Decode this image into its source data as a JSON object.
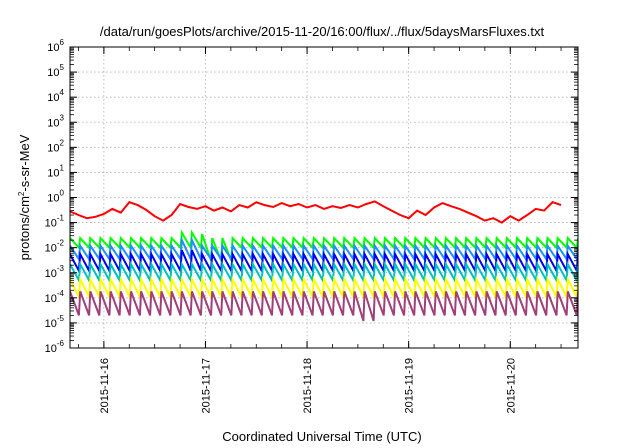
{
  "chart_data": {
    "type": "line",
    "title": "/data/run/goesPlots/archive/2015-11-20/16:00/flux/../flux/5daysMarsFluxes.txt",
    "xlabel": "Coordinated Universal Time (UTC)",
    "ylabel": {
      "base": "protons/cm",
      "sup": "2",
      "rest": "-s-sr-MeV"
    },
    "y_scale": "log",
    "y_range_exp": [
      -6,
      6
    ],
    "y_ticks": [
      {
        "base": "10",
        "exp": "-6"
      },
      {
        "base": "10",
        "exp": "-5"
      },
      {
        "base": "10",
        "exp": "-4"
      },
      {
        "base": "10",
        "exp": "-3"
      },
      {
        "base": "10",
        "exp": "-2"
      },
      {
        "base": "10",
        "exp": "-1"
      },
      {
        "base": "10",
        "exp": "0"
      },
      {
        "base": "10",
        "exp": "1"
      },
      {
        "base": "10",
        "exp": "2"
      },
      {
        "base": "10",
        "exp": "3"
      },
      {
        "base": "10",
        "exp": "4"
      },
      {
        "base": "10",
        "exp": "5"
      },
      {
        "base": "10",
        "exp": "6"
      }
    ],
    "x_range": [
      "2015-11-15T16:00",
      "2015-11-20T16:00"
    ],
    "x_ticks": [
      "2015-11-16",
      "2015-11-17",
      "2015-11-18",
      "2015-11-19",
      "2015-11-20"
    ],
    "grid": true,
    "legend": "none",
    "series": [
      {
        "color": "#ff0000",
        "points": [
          [
            "2015-11-15T16:00",
            0.28
          ],
          [
            "2015-11-15T18:00",
            0.2
          ],
          [
            "2015-11-15T20:00",
            0.15
          ],
          [
            "2015-11-15T22:00",
            0.17
          ],
          [
            "2015-11-16T00:00",
            0.22
          ],
          [
            "2015-11-16T02:00",
            0.35
          ],
          [
            "2015-11-16T04:00",
            0.25
          ],
          [
            "2015-11-16T06:00",
            0.65
          ],
          [
            "2015-11-16T08:00",
            0.5
          ],
          [
            "2015-11-16T10:00",
            0.32
          ],
          [
            "2015-11-16T12:00",
            0.18
          ],
          [
            "2015-11-16T14:00",
            0.12
          ],
          [
            "2015-11-16T16:00",
            0.2
          ],
          [
            "2015-11-16T18:00",
            0.55
          ],
          [
            "2015-11-16T20:00",
            0.42
          ],
          [
            "2015-11-16T22:00",
            0.35
          ],
          [
            "2015-11-17T00:00",
            0.45
          ],
          [
            "2015-11-17T02:00",
            0.3
          ],
          [
            "2015-11-17T04:00",
            0.4
          ],
          [
            "2015-11-17T06:00",
            0.28
          ],
          [
            "2015-11-17T08:00",
            0.5
          ],
          [
            "2015-11-17T10:00",
            0.4
          ],
          [
            "2015-11-17T12:00",
            0.65
          ],
          [
            "2015-11-17T14:00",
            0.5
          ],
          [
            "2015-11-17T16:00",
            0.42
          ],
          [
            "2015-11-17T18:00",
            0.6
          ],
          [
            "2015-11-17T20:00",
            0.45
          ],
          [
            "2015-11-17T22:00",
            0.55
          ],
          [
            "2015-11-18T00:00",
            0.4
          ],
          [
            "2015-11-18T02:00",
            0.5
          ],
          [
            "2015-11-18T04:00",
            0.35
          ],
          [
            "2015-11-18T06:00",
            0.45
          ],
          [
            "2015-11-18T08:00",
            0.38
          ],
          [
            "2015-11-18T10:00",
            0.5
          ],
          [
            "2015-11-18T12:00",
            0.4
          ],
          [
            "2015-11-18T14:00",
            0.55
          ],
          [
            "2015-11-18T16:00",
            0.7
          ],
          [
            "2015-11-18T18:00",
            0.45
          ],
          [
            "2015-11-18T20:00",
            0.3
          ],
          [
            "2015-11-18T22:00",
            0.2
          ],
          [
            "2015-11-19T00:00",
            0.15
          ],
          [
            "2015-11-19T02:00",
            0.3
          ],
          [
            "2015-11-19T04:00",
            0.2
          ],
          [
            "2015-11-19T06:00",
            0.4
          ],
          [
            "2015-11-19T08:00",
            0.6
          ],
          [
            "2015-11-19T10:00",
            0.45
          ],
          [
            "2015-11-19T12:00",
            0.35
          ],
          [
            "2015-11-19T14:00",
            0.25
          ],
          [
            "2015-11-19T16:00",
            0.18
          ],
          [
            "2015-11-19T18:00",
            0.12
          ],
          [
            "2015-11-19T20:00",
            0.15
          ],
          [
            "2015-11-19T22:00",
            0.1
          ],
          [
            "2015-11-20T00:00",
            0.18
          ],
          [
            "2015-11-20T02:00",
            0.12
          ],
          [
            "2015-11-20T04:00",
            0.2
          ],
          [
            "2015-11-20T06:00",
            0.35
          ],
          [
            "2015-11-20T08:00",
            0.3
          ],
          [
            "2015-11-20T10:00",
            0.65
          ],
          [
            "2015-11-20T12:00",
            0.5
          ]
        ]
      },
      {
        "color": "#00ff00",
        "sawtooth": true,
        "start": "2015-11-15T16:00",
        "end": "2015-11-20T16:00",
        "cycles": 50,
        "low": 0.01,
        "high": 0.024,
        "low_dips": [
          [
            "2015-11-17T02:00",
            0.003
          ],
          [
            "2015-11-17T04:00",
            0.003
          ]
        ],
        "high_peaks": [
          [
            "2015-11-16T20:00",
            0.04
          ],
          [
            "2015-11-16T22:00",
            0.035
          ]
        ]
      },
      {
        "color": "#1e90ff",
        "sawtooth": true,
        "start": "2015-11-15T16:00",
        "end": "2015-11-20T16:00",
        "cycles": 50,
        "low": 0.0035,
        "high": 0.012,
        "low_dips": [],
        "high_peaks": [
          [
            "2015-11-16T20:00",
            0.02
          ]
        ]
      },
      {
        "color": "#0000ee",
        "sawtooth": true,
        "start": "2015-11-15T16:00",
        "end": "2015-11-20T16:00",
        "cycles": 50,
        "low": 0.0012,
        "high": 0.0055,
        "low_dips": [],
        "high_peaks": [
          [
            "2015-11-16T20:00",
            0.008
          ]
        ]
      },
      {
        "color": "#00c0c0",
        "sawtooth": true,
        "start": "2015-11-15T16:00",
        "end": "2015-11-20T16:00",
        "cycles": 50,
        "low": 0.0005,
        "high": 0.0022,
        "low_dips": [],
        "high_peaks": []
      },
      {
        "color": "#ffff00",
        "sawtooth": true,
        "start": "2015-11-15T16:00",
        "end": "2015-11-20T16:00",
        "cycles": 50,
        "low": 0.00011,
        "high": 0.00055,
        "low_dips": [],
        "high_peaks": []
      },
      {
        "color": "#a0407a",
        "sawtooth": true,
        "start": "2015-11-15T16:00",
        "end": "2015-11-20T16:00",
        "cycles": 50,
        "low": 2e-05,
        "high": 0.00018,
        "low_dips": [
          [
            "2015-11-18T15:00",
            1.2e-05
          ]
        ],
        "high_peaks": []
      }
    ]
  }
}
